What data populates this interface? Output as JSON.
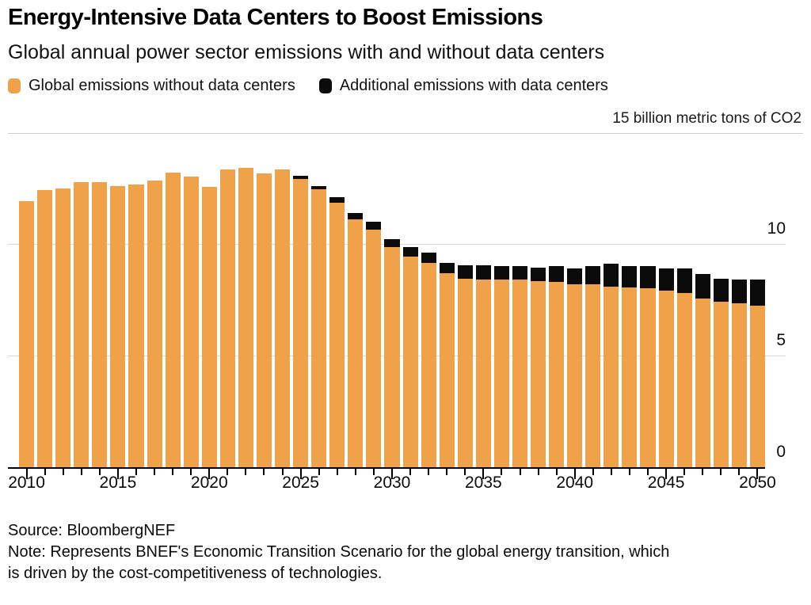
{
  "header": {
    "title": "Energy-Intensive Data Centers to Boost Emissions",
    "subtitle": "Global annual power sector emissions with and without data centers",
    "unit_label": "15 billion metric tons of CO2"
  },
  "legend": {
    "position": "top",
    "items": [
      {
        "label": "Global emissions without data centers",
        "color": "#F0A24A"
      },
      {
        "label": "Additional emissions with data centers",
        "color": "#0B0B0B"
      }
    ]
  },
  "footer": {
    "source": "Source: BloombergNEF",
    "note_line1": "Note: Represents BNEF's Economic Transition Scenario for the global energy transition, which",
    "note_line2": "is driven by the cost-competitiveness of technologies."
  },
  "colors": {
    "bar_orange": "#F0A24A",
    "bar_black": "#0B0B0B",
    "gridline": "#d9d9d9",
    "axis": "#000000",
    "background": "#ffffff"
  },
  "chart_data": {
    "type": "bar",
    "stacked": true,
    "title": "Energy-Intensive Data Centers to Boost Emissions",
    "subtitle": "Global annual power sector emissions with and without data centers",
    "unit": "billion metric tons of CO2",
    "x": [
      2010,
      2011,
      2012,
      2013,
      2014,
      2015,
      2016,
      2017,
      2018,
      2019,
      2020,
      2021,
      2022,
      2023,
      2024,
      2025,
      2026,
      2027,
      2028,
      2029,
      2030,
      2031,
      2032,
      2033,
      2034,
      2035,
      2036,
      2037,
      2038,
      2039,
      2040,
      2041,
      2042,
      2043,
      2044,
      2045,
      2046,
      2047,
      2048,
      2049,
      2050
    ],
    "series": [
      {
        "name": "Global emissions without data centers",
        "color": "#F0A24A",
        "values": [
          11.9,
          12.4,
          12.5,
          12.75,
          12.75,
          12.6,
          12.65,
          12.85,
          13.2,
          13.0,
          12.55,
          13.35,
          13.4,
          13.15,
          13.35,
          12.9,
          12.45,
          11.85,
          11.1,
          10.65,
          9.85,
          9.45,
          9.15,
          8.7,
          8.45,
          8.4,
          8.4,
          8.4,
          8.35,
          8.3,
          8.2,
          8.2,
          8.1,
          8.05,
          8.0,
          7.9,
          7.8,
          7.55,
          7.4,
          7.35,
          7.25
        ]
      },
      {
        "name": "Additional emissions with data centers",
        "color": "#0B0B0B",
        "values": [
          0,
          0,
          0,
          0,
          0,
          0,
          0,
          0,
          0,
          0,
          0,
          0,
          0,
          0,
          0,
          0.15,
          0.15,
          0.25,
          0.3,
          0.35,
          0.35,
          0.4,
          0.45,
          0.45,
          0.6,
          0.65,
          0.6,
          0.6,
          0.6,
          0.7,
          0.7,
          0.8,
          1.0,
          0.95,
          1.0,
          1.0,
          1.1,
          1.1,
          1.05,
          1.05,
          1.15
        ]
      }
    ],
    "ylim": [
      0,
      15
    ],
    "yticks": [
      0,
      5,
      10
    ],
    "ytop_reference": 15,
    "xtick_labeled_years": [
      2010,
      2015,
      2020,
      2025,
      2030,
      2035,
      2040,
      2045,
      2050
    ],
    "grid": "horizontal",
    "legend_position": "top"
  }
}
